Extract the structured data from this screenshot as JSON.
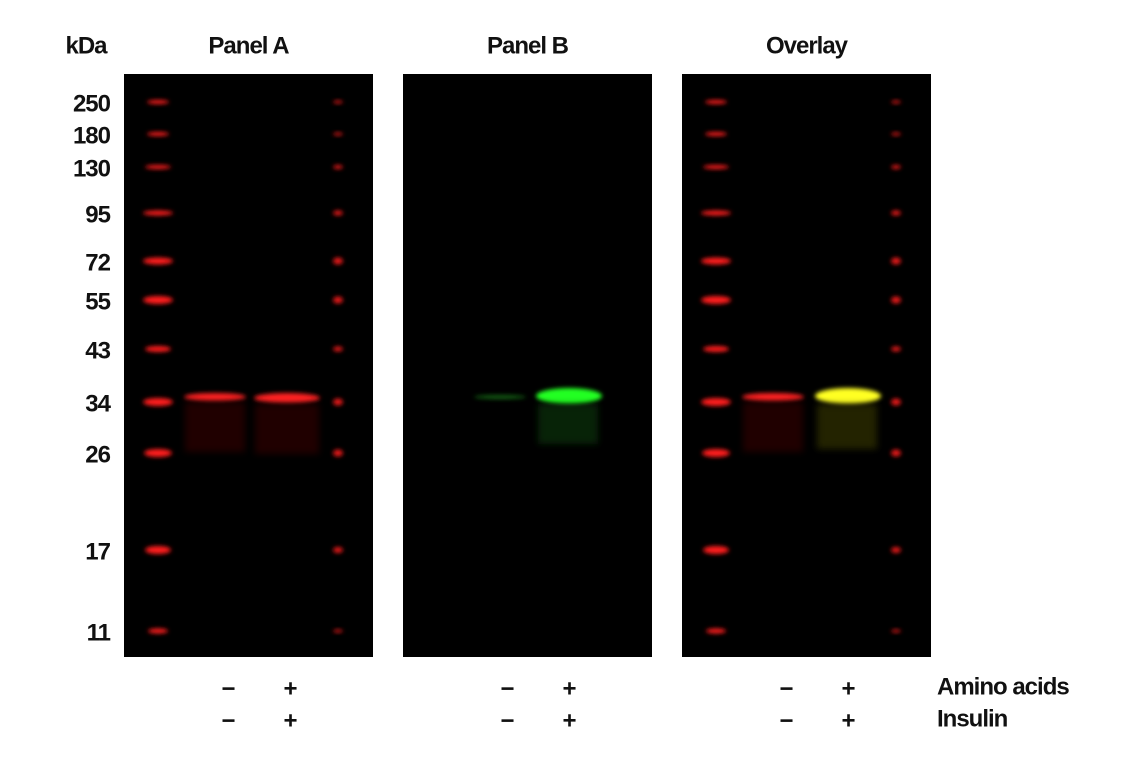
{
  "header": {
    "kda": "kDa"
  },
  "panels": [
    {
      "title": "Panel A"
    },
    {
      "title": "Panel B"
    },
    {
      "title": "Overlay"
    }
  ],
  "markers": [
    250,
    180,
    130,
    95,
    72,
    55,
    43,
    34,
    26,
    17,
    11
  ],
  "conditions": [
    {
      "label": "Amino acids",
      "signs": [
        "−",
        "+"
      ]
    },
    {
      "label": "Insulin",
      "signs": [
        "−",
        "+"
      ]
    }
  ]
}
